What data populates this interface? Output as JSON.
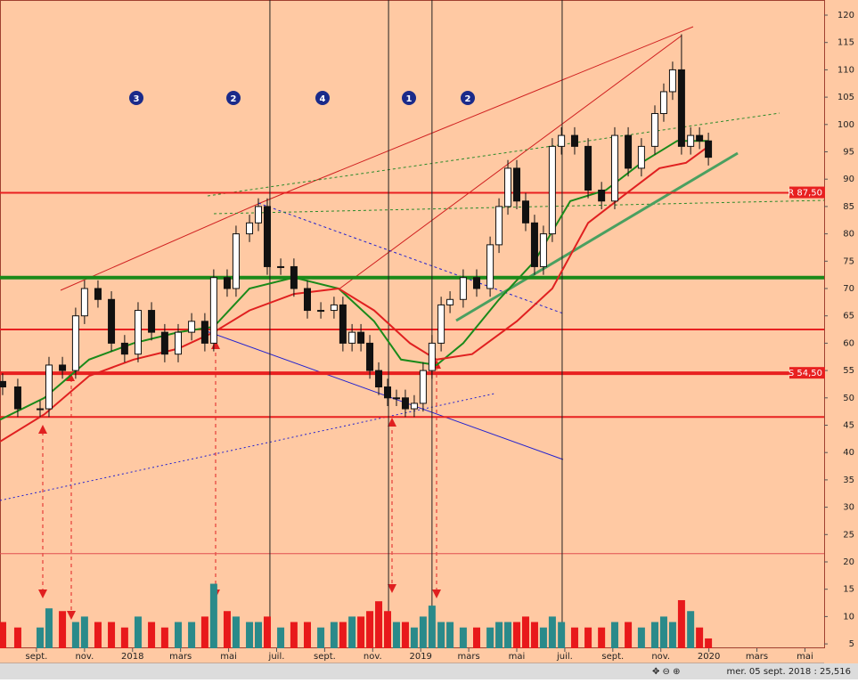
{
  "chart_data": {
    "type": "candlestick",
    "xlim": [
      -1.52,
      32.8
    ],
    "ylim": [
      4.2,
      122.77
    ],
    "yticks": [
      5,
      10,
      15,
      20,
      25,
      30,
      35,
      40,
      45,
      50,
      55,
      60,
      65,
      70,
      75,
      80,
      85,
      90,
      95,
      100,
      105,
      110,
      115,
      120
    ],
    "xticks": [
      {
        "value": 0,
        "label": "sept."
      },
      {
        "value": 2,
        "label": "nov."
      },
      {
        "value": 4,
        "label": "2018"
      },
      {
        "value": 6,
        "label": "mars"
      },
      {
        "value": 8,
        "label": "mai"
      },
      {
        "value": 10,
        "label": "juil."
      },
      {
        "value": 12,
        "label": "sept."
      },
      {
        "value": 14,
        "label": "nov."
      },
      {
        "value": 16,
        "label": "2019"
      },
      {
        "value": 18,
        "label": "mars"
      },
      {
        "value": 20,
        "label": "mai"
      },
      {
        "value": 22,
        "label": "juil."
      },
      {
        "value": 24,
        "label": "sept."
      },
      {
        "value": 26,
        "label": "nov."
      },
      {
        "value": 28,
        "label": "2020"
      },
      {
        "value": 30,
        "label": "mars"
      },
      {
        "value": 32,
        "label": "mai"
      }
    ],
    "x": [
      -1.41,
      -0.78,
      0.15,
      0.52,
      1.08,
      1.63,
      2.0,
      2.56,
      3.12,
      3.67,
      4.23,
      4.79,
      5.34,
      5.9,
      6.46,
      7.01,
      7.38,
      7.94,
      8.31,
      8.87,
      9.24,
      9.61,
      10.17,
      10.72,
      11.28,
      11.84,
      12.39,
      12.76,
      13.14,
      13.51,
      13.88,
      14.25,
      14.62,
      14.99,
      15.36,
      15.73,
      16.1,
      16.47,
      16.85,
      17.22,
      17.77,
      18.33,
      18.89,
      19.26,
      19.63,
      20.0,
      20.37,
      20.74,
      21.11,
      21.48,
      21.86,
      22.41,
      22.97,
      23.53,
      24.08,
      24.64,
      25.19,
      25.75,
      26.12,
      26.49,
      26.86,
      27.24,
      27.61,
      27.98
    ],
    "open": [
      53,
      52,
      48,
      48,
      56,
      55,
      65,
      70,
      68,
      60,
      58,
      66,
      62,
      58,
      62,
      64,
      60,
      72,
      70,
      80,
      82,
      85,
      74,
      74,
      70,
      66,
      66,
      67,
      60,
      62,
      60,
      55,
      52,
      50,
      50,
      48,
      49,
      55,
      60,
      67,
      68,
      72,
      70,
      78,
      85,
      92,
      86,
      82,
      74,
      80,
      96,
      98,
      96,
      88,
      86,
      98,
      92,
      96,
      102,
      106,
      110,
      96,
      98,
      97
    ],
    "high": [
      54.5,
      53.5,
      49.5,
      57.5,
      57.5,
      66.5,
      71.5,
      71.5,
      69.5,
      61.5,
      67.5,
      67.5,
      63.5,
      63.5,
      65.5,
      65.5,
      73.5,
      73.5,
      81.5,
      83.5,
      86.5,
      86.5,
      75.5,
      75.5,
      71.5,
      67.5,
      68.5,
      68.5,
      63.5,
      63.5,
      61.5,
      56.5,
      53.5,
      51.5,
      51.5,
      50.5,
      56.5,
      61.5,
      68.5,
      69.5,
      73.5,
      73.5,
      79.5,
      86.5,
      93.5,
      93.5,
      87.5,
      83.5,
      81.5,
      97.5,
      99.5,
      99.5,
      97.5,
      89.5,
      99.5,
      99.5,
      97.5,
      103.5,
      107.5,
      111.5,
      116.5,
      99.5,
      99.5,
      98.5
    ],
    "low": [
      50.5,
      46.5,
      46.5,
      46.5,
      53.5,
      53.5,
      63.5,
      66.5,
      58.5,
      56.5,
      56.5,
      60.5,
      56.5,
      56.5,
      60.5,
      58.5,
      58.5,
      68.5,
      68.5,
      78.5,
      80.5,
      72.5,
      72.5,
      68.5,
      64.5,
      64.5,
      64.5,
      58.5,
      58.5,
      58.5,
      53.5,
      50.5,
      48.5,
      48.5,
      46.5,
      46.5,
      47.5,
      53.5,
      58.5,
      65.5,
      66.5,
      68.5,
      68.5,
      76.5,
      83.5,
      84.5,
      80.5,
      72.5,
      72.5,
      78.5,
      94.5,
      94.5,
      86.5,
      84.5,
      84.5,
      90.5,
      90.5,
      94.5,
      100.5,
      104.5,
      94.5,
      94.5,
      95.5,
      92.5
    ],
    "close": [
      52,
      48,
      48,
      56,
      55,
      65,
      70,
      68,
      60,
      58,
      66,
      62,
      58,
      62,
      64,
      60,
      72,
      70,
      80,
      82,
      85,
      74,
      74,
      70,
      66,
      66,
      67,
      60,
      62,
      60,
      55,
      52,
      50,
      50,
      48,
      49,
      55,
      60,
      67,
      68,
      72,
      70,
      78,
      85,
      92,
      86,
      82,
      74,
      80,
      96,
      98,
      96,
      88,
      86,
      98,
      92,
      96,
      102,
      106,
      110,
      96,
      98,
      97,
      94
    ],
    "volume": [
      9,
      8,
      8,
      11.5,
      11,
      9,
      10,
      9,
      9,
      8,
      10,
      9,
      8,
      9,
      9,
      10,
      16,
      11,
      10,
      9,
      9,
      10,
      8,
      9,
      9,
      8,
      9,
      9,
      10,
      10,
      11,
      12.8,
      11,
      9,
      9,
      8,
      10,
      12,
      9,
      9,
      8,
      8,
      8,
      9,
      9,
      9,
      10,
      9,
      8,
      10,
      9,
      8,
      8,
      8,
      9,
      9,
      8,
      9,
      10,
      9,
      13,
      11,
      8,
      6
    ],
    "up_color": "#ffffff",
    "down_color": "#111111",
    "volume_up_color": "#2a8a8a",
    "volume_down_color": "#e8191b",
    "series": [
      {
        "color": "#1a8a1a",
        "x": [
          -1.52,
          0.33,
          2.19,
          4.04,
          5.9,
          7.38,
          8.87,
          10.72,
          12.58,
          14.06,
          15.18,
          16.66,
          17.77,
          19.26,
          20.74,
          22.23,
          23.71,
          25.19,
          26.68,
          27.98
        ],
        "values": [
          46,
          50,
          57,
          60,
          62,
          63,
          70,
          72,
          70,
          64,
          57,
          56,
          60,
          68,
          75,
          86,
          88,
          93,
          97,
          97
        ]
      },
      {
        "color": "#e02020",
        "x": [
          -1.52,
          0.33,
          2.19,
          4.04,
          5.9,
          7.38,
          8.87,
          10.72,
          12.58,
          14.06,
          15.55,
          16.66,
          18.14,
          20.0,
          21.48,
          22.97,
          24.45,
          25.94,
          27.05,
          27.98
        ],
        "values": [
          42,
          47,
          54,
          57,
          59,
          62,
          66,
          69,
          70,
          66,
          60,
          57,
          58,
          64,
          70,
          82,
          87,
          92,
          93,
          96
        ]
      }
    ],
    "levels": [
      {
        "value": 87.5,
        "color": "#e82020",
        "width": 2,
        "label": "R 87,50"
      },
      {
        "value": 72,
        "color": "#1a8a1a",
        "width": 4
      },
      {
        "value": 62.5,
        "color": "#e82020",
        "width": 2
      },
      {
        "value": 54.5,
        "color": "#e82020",
        "width": 4,
        "label": "S 54,50"
      },
      {
        "value": 46.5,
        "color": "#e82020",
        "width": 2
      },
      {
        "value": 21.5,
        "color": "#e05050",
        "width": 1
      }
    ],
    "vlines": [
      9.72,
      14.66,
      16.47,
      21.89
    ],
    "waves": [
      "3",
      "2",
      "4",
      "1",
      "2"
    ],
    "status": "mer. 05 sept. 2018 : 25,516"
  }
}
